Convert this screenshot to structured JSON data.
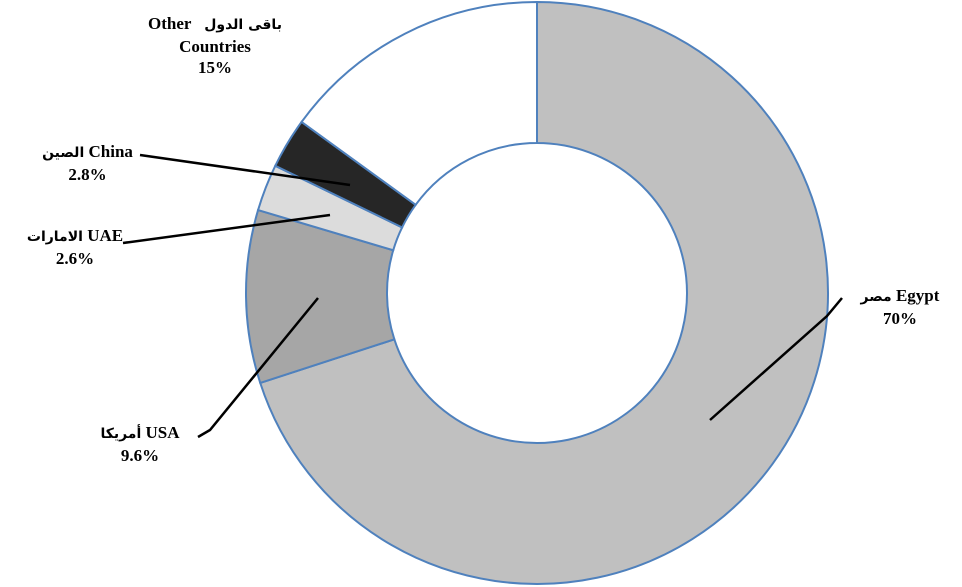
{
  "chart_data": {
    "type": "pie",
    "title": "",
    "donut": true,
    "start_angle_deg": 0,
    "direction": "clockwise",
    "slice_border_color": "#4F81BD",
    "slices": [
      {
        "name_en": "Egypt",
        "name_ar": "مصر",
        "value": 70,
        "label_value": "70%",
        "color": "#C0C0C0"
      },
      {
        "name_en": "USA",
        "name_ar": "أمريكا",
        "value": 9.6,
        "label_value": "9.6%",
        "color": "#A6A6A6"
      },
      {
        "name_en": "UAE",
        "name_ar": "الامارات",
        "value": 2.6,
        "label_value": "2.6%",
        "color": "#DCDCDC"
      },
      {
        "name_en": "China",
        "name_ar": "الصين",
        "value": 2.8,
        "label_value": "2.8%",
        "color": "#262626"
      },
      {
        "name_en": "Other Countries",
        "name_en_1": "Other",
        "name_en_2": "Countries",
        "name_ar": "باقى الدول",
        "value": 15,
        "label_value": "15%",
        "color": "#FFFFFF"
      }
    ]
  }
}
